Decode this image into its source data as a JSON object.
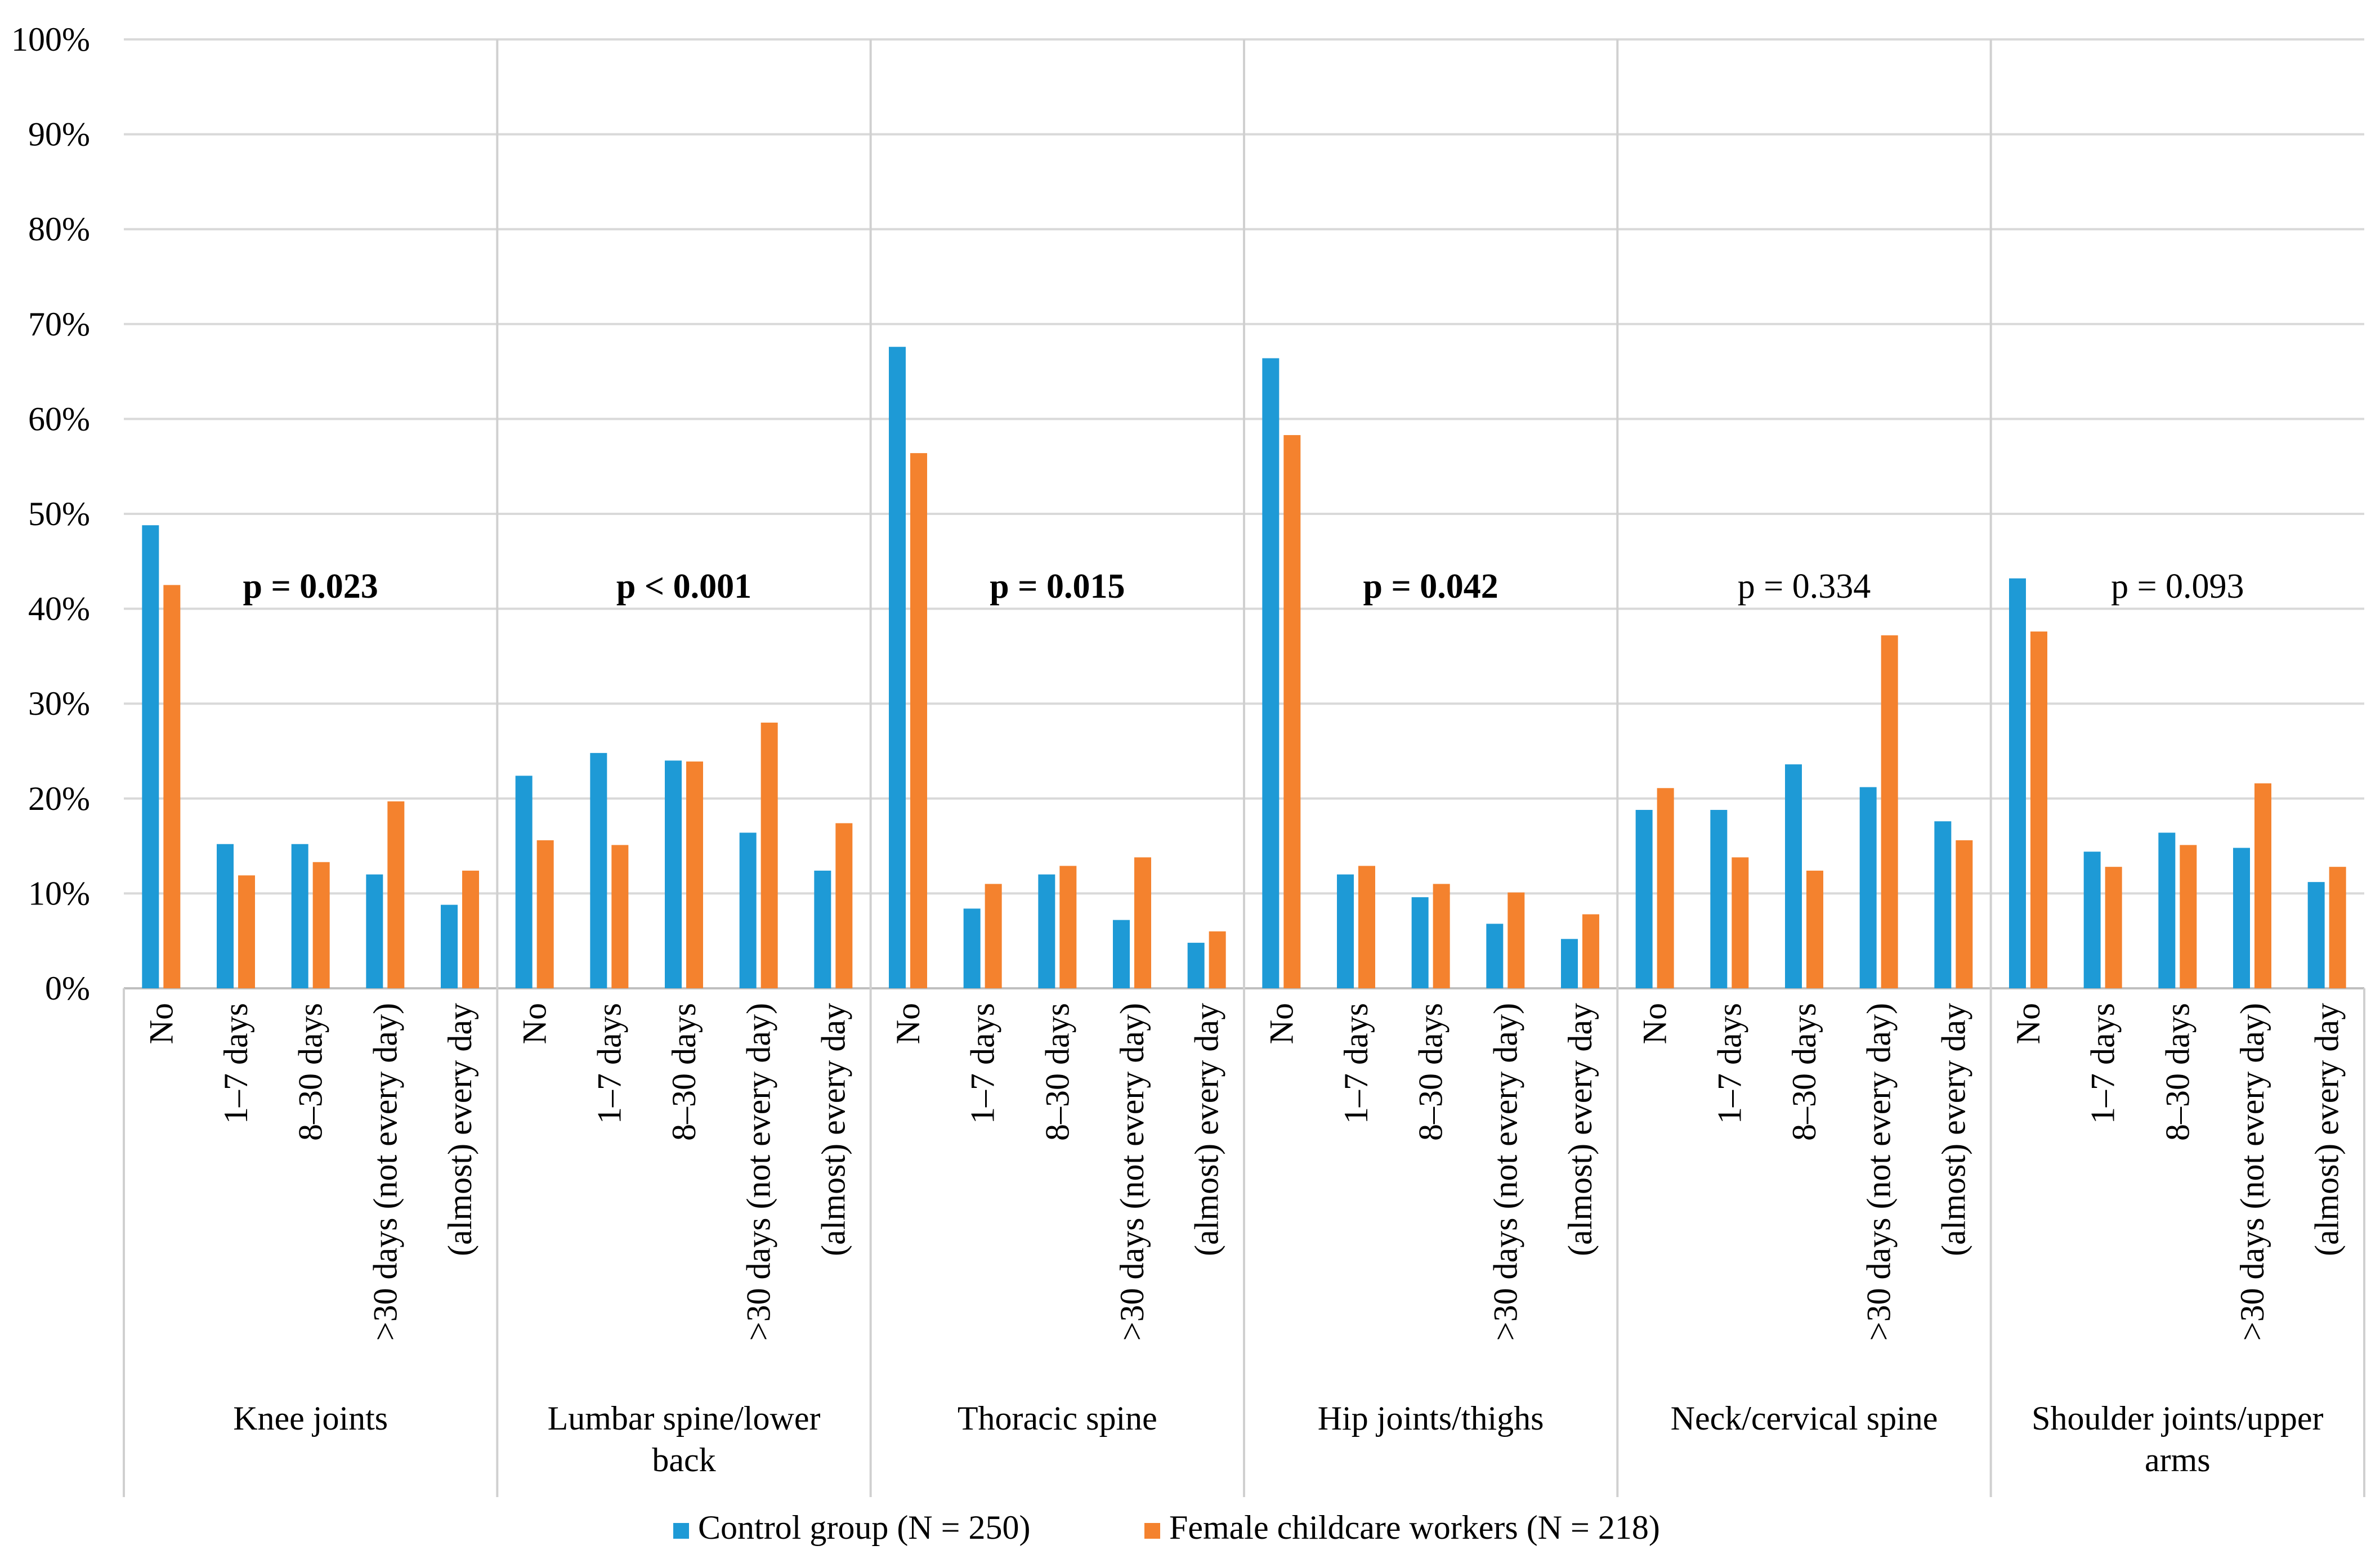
{
  "chart_data": {
    "type": "bar",
    "title": "",
    "xlabel": "",
    "ylabel": "",
    "ylim": [
      0,
      100
    ],
    "y_ticks": [
      "0%",
      "10%",
      "20%",
      "30%",
      "40%",
      "50%",
      "60%",
      "70%",
      "80%",
      "90%",
      "100%"
    ],
    "gridlines": true,
    "legend_position": "bottom",
    "colors": {
      "control": "#1e9ad6",
      "childcare": "#f4822e"
    },
    "categories": [
      "No",
      "1–7 days",
      "8–30 days",
      ">30 days (not every day)",
      "(almost) every day"
    ],
    "groups": [
      {
        "name": "Knee joints",
        "p_value": "p = 0.023",
        "significant": true,
        "control": [
          48.8,
          15.2,
          15.2,
          12.0,
          8.8
        ],
        "childcare": [
          42.5,
          11.9,
          13.3,
          19.7,
          12.4
        ]
      },
      {
        "name": "Lumbar spine/lower back",
        "name_lines": [
          "Lumbar spine/lower",
          "back"
        ],
        "p_value": "p < 0.001",
        "significant": true,
        "control": [
          22.4,
          24.8,
          24.0,
          16.4,
          12.4
        ],
        "childcare": [
          15.6,
          15.1,
          23.9,
          28.0,
          17.4
        ]
      },
      {
        "name": "Thoracic spine",
        "p_value": "p = 0.015",
        "significant": true,
        "control": [
          67.6,
          8.4,
          12.0,
          7.2,
          4.8
        ],
        "childcare": [
          56.4,
          11.0,
          12.9,
          13.8,
          6.0
        ]
      },
      {
        "name": "Hip joints/thighs",
        "p_value": "p = 0.042",
        "significant": true,
        "control": [
          66.4,
          12.0,
          9.6,
          6.8,
          5.2
        ],
        "childcare": [
          58.3,
          12.9,
          11.0,
          10.1,
          7.8
        ]
      },
      {
        "name": "Neck/cervical spine",
        "p_value": "p = 0.334",
        "significant": false,
        "control": [
          18.8,
          18.8,
          23.6,
          21.2,
          17.6
        ],
        "childcare": [
          21.1,
          13.8,
          12.4,
          37.2,
          15.6
        ]
      },
      {
        "name": "Shoulder joints/upper arms",
        "name_lines": [
          "Shoulder joints/upper",
          "arms"
        ],
        "p_value": "p = 0.093",
        "significant": false,
        "control": [
          43.2,
          14.4,
          16.4,
          14.8,
          11.2
        ],
        "childcare": [
          37.6,
          12.8,
          15.1,
          21.6,
          12.8
        ]
      }
    ],
    "series": [
      {
        "key": "control",
        "name": "Control group (N = 250)"
      },
      {
        "key": "childcare",
        "name": "Female childcare workers (N = 218)"
      }
    ]
  }
}
